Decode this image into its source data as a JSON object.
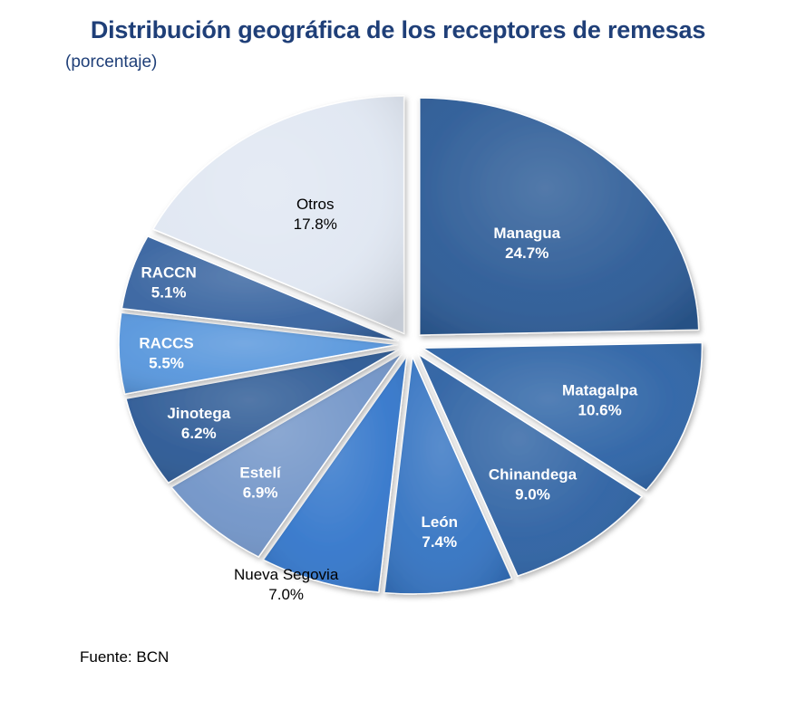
{
  "chart_data": {
    "type": "pie",
    "title": "Distribución geográfica de los receptores de remesas",
    "subtitle": "(porcentaje)",
    "source": "Fuente: BCN",
    "categories": [
      "Managua",
      "Matagalpa",
      "Chinandega",
      "León",
      "Nueva Segovia",
      "Estelí",
      "Jinotega",
      "RACCS",
      "RACCN",
      "Otros"
    ],
    "values": [
      24.7,
      10.6,
      9.0,
      7.4,
      7.0,
      6.9,
      6.2,
      5.5,
      5.1,
      17.8
    ],
    "value_labels": [
      "24.7%",
      "10.6%",
      "9.0%",
      "7.4%",
      "7.0%",
      "6.9%",
      "6.2%",
      "5.5%",
      "5.1%",
      "17.8%"
    ],
    "colors": [
      "#2d5c97",
      "#2e64a6",
      "#2e62a3",
      "#3574c2",
      "#3477cb",
      "#7295c8",
      "#2d5a95",
      "#5796dc",
      "#3864a0",
      "#e0e7f2"
    ],
    "label_colors": [
      "#ffffff",
      "#ffffff",
      "#ffffff",
      "#ffffff",
      "#000000",
      "#ffffff",
      "#ffffff",
      "#ffffff",
      "#ffffff",
      "#000000"
    ],
    "exploded": true
  }
}
